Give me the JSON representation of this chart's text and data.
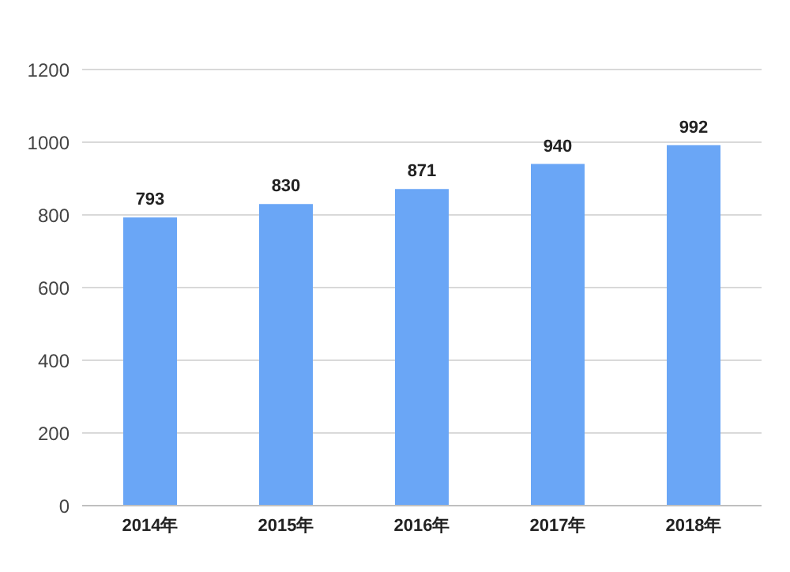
{
  "chart_data": {
    "type": "bar",
    "categories": [
      "2014年",
      "2015年",
      "2016年",
      "2017年",
      "2018年"
    ],
    "values": [
      793,
      830,
      871,
      940,
      992
    ],
    "color": "#6aa6f6",
    "ylim": [
      0,
      1200
    ],
    "yticks": [
      0,
      200,
      400,
      600,
      800,
      1000,
      1200
    ],
    "grid": "y",
    "data_labels": true
  }
}
